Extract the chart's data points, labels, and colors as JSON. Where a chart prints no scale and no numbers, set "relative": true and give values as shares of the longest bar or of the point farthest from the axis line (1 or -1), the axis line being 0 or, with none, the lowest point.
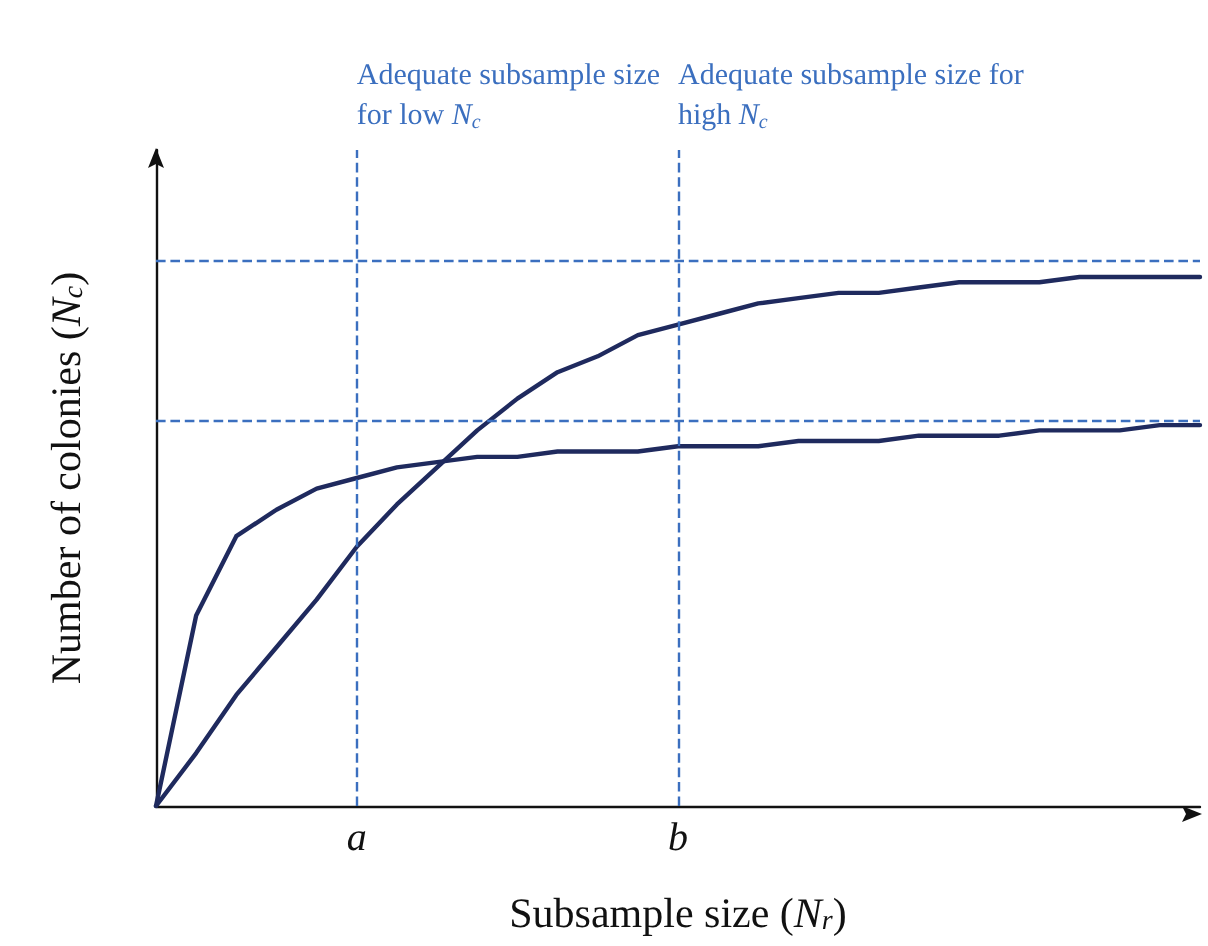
{
  "chart_data": {
    "type": "line",
    "relative": true,
    "xlabel": "Subsample size (N$_{r}$)",
    "ylabel": "Number of colonies (N$_{c}$)",
    "categories": [
      null,
      null,
      null,
      null,
      null,
      "a",
      null,
      null,
      null,
      null,
      null,
      null,
      null,
      "b",
      null,
      null,
      null,
      null,
      null,
      null,
      null,
      null,
      null,
      null,
      null,
      null,
      null
    ],
    "series": [
      {
        "color": "#1f2a5e",
        "values": [
          0,
          0.36,
          0.51,
          0.56,
          0.6,
          0.62,
          0.64,
          0.65,
          0.66,
          0.66,
          0.67,
          0.67,
          0.67,
          0.68,
          0.68,
          0.68,
          0.69,
          0.69,
          0.69,
          0.7,
          0.7,
          0.7,
          0.71,
          0.71,
          0.71,
          0.72,
          0.72
        ]
      },
      {
        "color": "#1f2a5e",
        "values": [
          0,
          0.1,
          0.21,
          0.3,
          0.39,
          0.49,
          0.57,
          0.64,
          0.71,
          0.77,
          0.82,
          0.85,
          0.89,
          0.91,
          0.93,
          0.95,
          0.96,
          0.97,
          0.97,
          0.98,
          0.99,
          0.99,
          0.99,
          1,
          1,
          1,
          1
        ]
      }
    ],
    "ref_lines": [
      {
        "axis": "x",
        "value": "a",
        "label": "Adequate subsample size\nfor low N$_{c}$",
        "color": "#3b6fbf",
        "line_style": "dashed"
      },
      {
        "axis": "x",
        "value": "b",
        "label": "Adequate subsample size for\nhigh N$_{c}$",
        "color": "#3b6fbf",
        "line_style": "dashed"
      },
      {
        "axis": "y",
        "value": 1.03,
        "color": "#3b6fbf",
        "line_style": "dashed"
      },
      {
        "axis": "y",
        "value": 0.73,
        "color": "#3b6fbf",
        "line_style": "dashed"
      }
    ],
    "grid": false,
    "marker": "none",
    "line_style": "solid"
  }
}
